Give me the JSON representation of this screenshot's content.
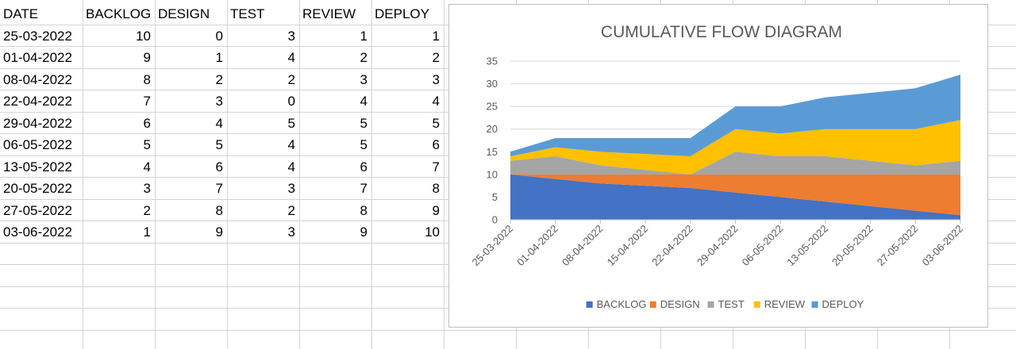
{
  "table": {
    "headers": [
      "DATE",
      "BACKLOG",
      "DESIGN",
      "TEST",
      "REVIEW",
      "DEPLOY"
    ],
    "rows": [
      [
        "25-03-2022",
        "10",
        "0",
        "3",
        "1",
        "1"
      ],
      [
        "01-04-2022",
        "9",
        "1",
        "4",
        "2",
        "2"
      ],
      [
        "08-04-2022",
        "8",
        "2",
        "2",
        "3",
        "3"
      ],
      [
        "22-04-2022",
        "7",
        "3",
        "0",
        "4",
        "4"
      ],
      [
        "29-04-2022",
        "6",
        "4",
        "5",
        "5",
        "5"
      ],
      [
        "06-05-2022",
        "5",
        "5",
        "4",
        "5",
        "6"
      ],
      [
        "13-05-2022",
        "4",
        "6",
        "4",
        "6",
        "7"
      ],
      [
        "20-05-2022",
        "3",
        "7",
        "3",
        "7",
        "8"
      ],
      [
        "27-05-2022",
        "2",
        "8",
        "2",
        "8",
        "9"
      ],
      [
        "03-06-2022",
        "1",
        "9",
        "3",
        "9",
        "10"
      ]
    ]
  },
  "chart_data": {
    "type": "area",
    "stacked": true,
    "title": "CUMULATIVE FLOW DIAGRAM",
    "xlabel": "",
    "ylabel": "",
    "ylim": [
      0,
      35
    ],
    "yticks": [
      0,
      5,
      10,
      15,
      20,
      25,
      30,
      35
    ],
    "grid": true,
    "legend_position": "bottom",
    "x": [
      "25-03-2022",
      "01-04-2022",
      "08-04-2022",
      "15-04-2022",
      "22-04-2022",
      "29-04-2022",
      "06-05-2022",
      "13-05-2022",
      "20-05-2022",
      "27-05-2022",
      "03-06-2022"
    ],
    "series": [
      {
        "name": "BACKLOG",
        "color": "#4472c4",
        "values": [
          10,
          9,
          8,
          7.5,
          7,
          6,
          5,
          4,
          3,
          2,
          1
        ]
      },
      {
        "name": "DESIGN",
        "color": "#ed7d31",
        "values": [
          0,
          1,
          2,
          2.5,
          3,
          4,
          5,
          6,
          7,
          8,
          9
        ]
      },
      {
        "name": "TEST",
        "color": "#a5a5a5",
        "values": [
          3,
          4,
          2,
          1,
          0,
          5,
          4,
          4,
          3,
          2,
          3
        ]
      },
      {
        "name": "REVIEW",
        "color": "#ffc000",
        "values": [
          1,
          2,
          3,
          3.5,
          4,
          5,
          5,
          6,
          7,
          8,
          9
        ]
      },
      {
        "name": "DEPLOY",
        "color": "#5b9bd5",
        "values": [
          1,
          2,
          3,
          3.5,
          4,
          5,
          6,
          7,
          8,
          9,
          10
        ]
      }
    ]
  }
}
